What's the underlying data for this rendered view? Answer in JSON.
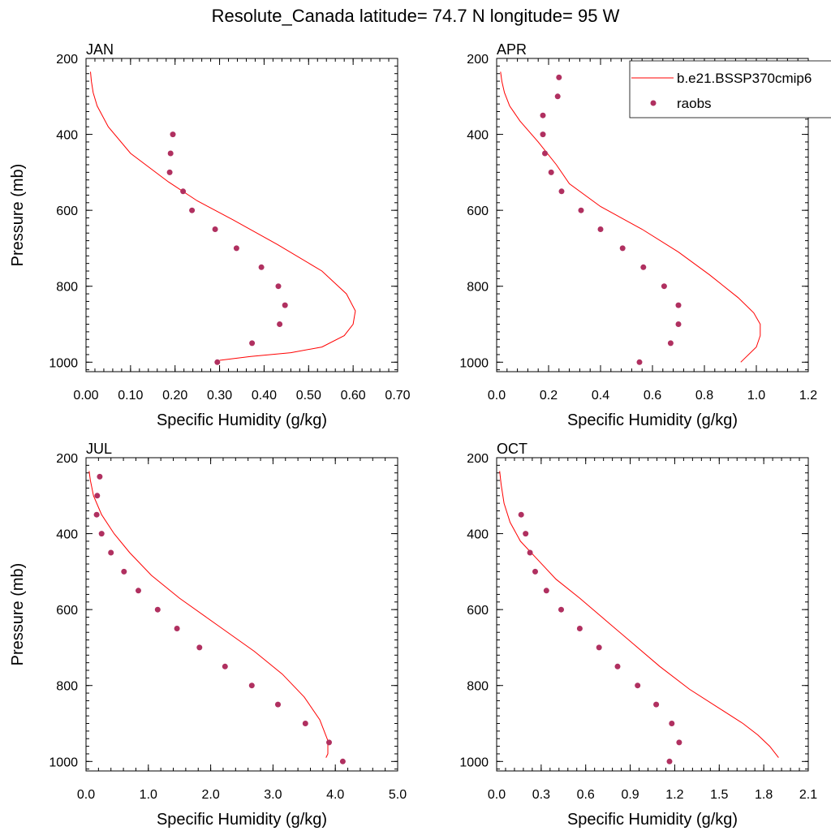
{
  "figure": {
    "title": "Resolute_Canada  latitude= 74.7 N longitude= 95 W"
  },
  "legend": {
    "model_label": "b.e21.BSSP370cmip6",
    "obs_label": "raobs"
  },
  "colors": {
    "model_line": "#ff0000",
    "obs_marker": "#b03060",
    "axis": "#000000"
  },
  "chart_data": [
    {
      "type": "line",
      "panel_title": "JAN",
      "xlabel": "Specific Humidity (g/kg)",
      "ylabel": "Pressure (mb)",
      "xlim": [
        0,
        0.7
      ],
      "ylim": [
        200,
        1025
      ],
      "y_reversed": true,
      "xticks": [
        0,
        0.1,
        0.2,
        0.3,
        0.4,
        0.5,
        0.6,
        0.7
      ],
      "xtick_labels": [
        "0.00",
        "0.10",
        "0.20",
        "0.30",
        "0.40",
        "0.50",
        "0.60",
        "0.70"
      ],
      "yticks": [
        200,
        400,
        600,
        800,
        1000
      ],
      "ytick_labels": [
        "200",
        "400",
        "600",
        "800",
        "1000"
      ],
      "series": [
        {
          "name": "b.e21.BSSP370cmip6",
          "type": "line",
          "x": [
            0.01,
            0.012,
            0.016,
            0.025,
            0.05,
            0.1,
            0.185,
            0.25,
            0.33,
            0.43,
            0.53,
            0.585,
            0.605,
            0.6,
            0.58,
            0.53,
            0.46,
            0.37,
            0.3
          ],
          "y": [
            235,
            260,
            290,
            325,
            380,
            450,
            525,
            575,
            625,
            690,
            760,
            820,
            865,
            900,
            930,
            960,
            975,
            985,
            995
          ]
        },
        {
          "name": "raobs",
          "type": "scatter",
          "x": [
            0.195,
            0.19,
            0.188,
            0.218,
            0.238,
            0.29,
            0.338,
            0.394,
            0.432,
            0.447,
            0.435,
            0.373,
            0.295
          ],
          "y": [
            400,
            450,
            500,
            550,
            600,
            650,
            700,
            750,
            800,
            850,
            900,
            950,
            1000
          ]
        }
      ]
    },
    {
      "type": "line",
      "panel_title": "APR",
      "xlabel": "Specific Humidity (g/kg)",
      "ylabel": "",
      "xlim": [
        0,
        1.2
      ],
      "ylim": [
        200,
        1025
      ],
      "y_reversed": true,
      "legend_position": "top-right",
      "xticks": [
        0,
        0.2,
        0.4,
        0.6,
        0.8,
        1.0,
        1.2
      ],
      "xtick_labels": [
        "0.0",
        "0.2",
        "0.4",
        "0.6",
        "0.8",
        "1.0",
        "1.2"
      ],
      "yticks": [
        200,
        400,
        600,
        800,
        1000
      ],
      "ytick_labels": [
        "200",
        "400",
        "600",
        "800",
        "1000"
      ],
      "series": [
        {
          "name": "b.e21.BSSP370cmip6",
          "type": "line",
          "x": [
            0.015,
            0.02,
            0.03,
            0.05,
            0.09,
            0.16,
            0.23,
            0.28,
            0.4,
            0.56,
            0.7,
            0.82,
            0.93,
            0.99,
            1.015,
            1.015,
            1.0,
            0.94
          ],
          "y": [
            235,
            260,
            290,
            325,
            365,
            420,
            480,
            530,
            590,
            650,
            710,
            770,
            830,
            870,
            900,
            930,
            960,
            1000
          ]
        },
        {
          "name": "raobs",
          "type": "scatter",
          "x": [
            0.24,
            0.235,
            0.178,
            0.178,
            0.186,
            0.21,
            0.25,
            0.325,
            0.4,
            0.485,
            0.565,
            0.645,
            0.7,
            0.7,
            0.67,
            0.55
          ],
          "y": [
            250,
            300,
            350,
            400,
            450,
            500,
            550,
            600,
            650,
            700,
            750,
            800,
            850,
            900,
            950,
            1000
          ]
        }
      ]
    },
    {
      "type": "line",
      "panel_title": "JUL",
      "xlabel": "Specific Humidity (g/kg)",
      "ylabel": "Pressure (mb)",
      "xlim": [
        0,
        5
      ],
      "ylim": [
        200,
        1025
      ],
      "y_reversed": true,
      "xticks": [
        0,
        1,
        2,
        3,
        4,
        5
      ],
      "xtick_labels": [
        "0.0",
        "1.0",
        "2.0",
        "3.0",
        "4.0",
        "5.0"
      ],
      "yticks": [
        200,
        400,
        600,
        800,
        1000
      ],
      "ytick_labels": [
        "200",
        "400",
        "600",
        "800",
        "1000"
      ],
      "series": [
        {
          "name": "b.e21.BSSP370cmip6",
          "type": "line",
          "x": [
            0.05,
            0.07,
            0.12,
            0.25,
            0.45,
            0.7,
            1.05,
            1.5,
            2.1,
            2.7,
            3.15,
            3.5,
            3.75,
            3.88,
            3.88,
            3.85
          ],
          "y": [
            235,
            260,
            300,
            350,
            400,
            450,
            510,
            570,
            640,
            710,
            770,
            830,
            890,
            945,
            980,
            990
          ]
        },
        {
          "name": "raobs",
          "type": "scatter",
          "x": [
            0.22,
            0.18,
            0.17,
            0.25,
            0.4,
            0.61,
            0.84,
            1.15,
            1.46,
            1.82,
            2.23,
            2.66,
            3.08,
            3.52,
            3.9,
            4.12
          ],
          "y": [
            250,
            300,
            350,
            400,
            450,
            500,
            550,
            600,
            650,
            700,
            750,
            800,
            850,
            900,
            950,
            1000
          ]
        }
      ]
    },
    {
      "type": "line",
      "panel_title": "OCT",
      "xlabel": "Specific Humidity (g/kg)",
      "ylabel": "",
      "xlim": [
        0,
        2.1
      ],
      "ylim": [
        200,
        1025
      ],
      "y_reversed": true,
      "xticks": [
        0,
        0.3,
        0.6,
        0.9,
        1.2,
        1.5,
        1.8,
        2.1
      ],
      "xtick_labels": [
        "0.0",
        "0.3",
        "0.6",
        "0.9",
        "1.2",
        "1.5",
        "1.8",
        "2.1"
      ],
      "yticks": [
        200,
        400,
        600,
        800,
        1000
      ],
      "ytick_labels": [
        "200",
        "400",
        "600",
        "800",
        "1000"
      ],
      "series": [
        {
          "name": "b.e21.BSSP370cmip6",
          "type": "line",
          "x": [
            0.02,
            0.03,
            0.05,
            0.09,
            0.16,
            0.28,
            0.4,
            0.56,
            0.74,
            0.92,
            1.1,
            1.3,
            1.5,
            1.66,
            1.76,
            1.84,
            1.9
          ],
          "y": [
            235,
            270,
            320,
            370,
            420,
            470,
            520,
            570,
            630,
            690,
            750,
            810,
            860,
            900,
            930,
            960,
            990
          ]
        },
        {
          "name": "raobs",
          "type": "scatter",
          "x": [
            0.165,
            0.195,
            0.225,
            0.26,
            0.335,
            0.435,
            0.56,
            0.69,
            0.815,
            0.95,
            1.075,
            1.18,
            1.23,
            1.165
          ],
          "y": [
            350,
            400,
            450,
            500,
            550,
            600,
            650,
            700,
            750,
            800,
            850,
            900,
            950,
            1000
          ]
        }
      ]
    }
  ]
}
